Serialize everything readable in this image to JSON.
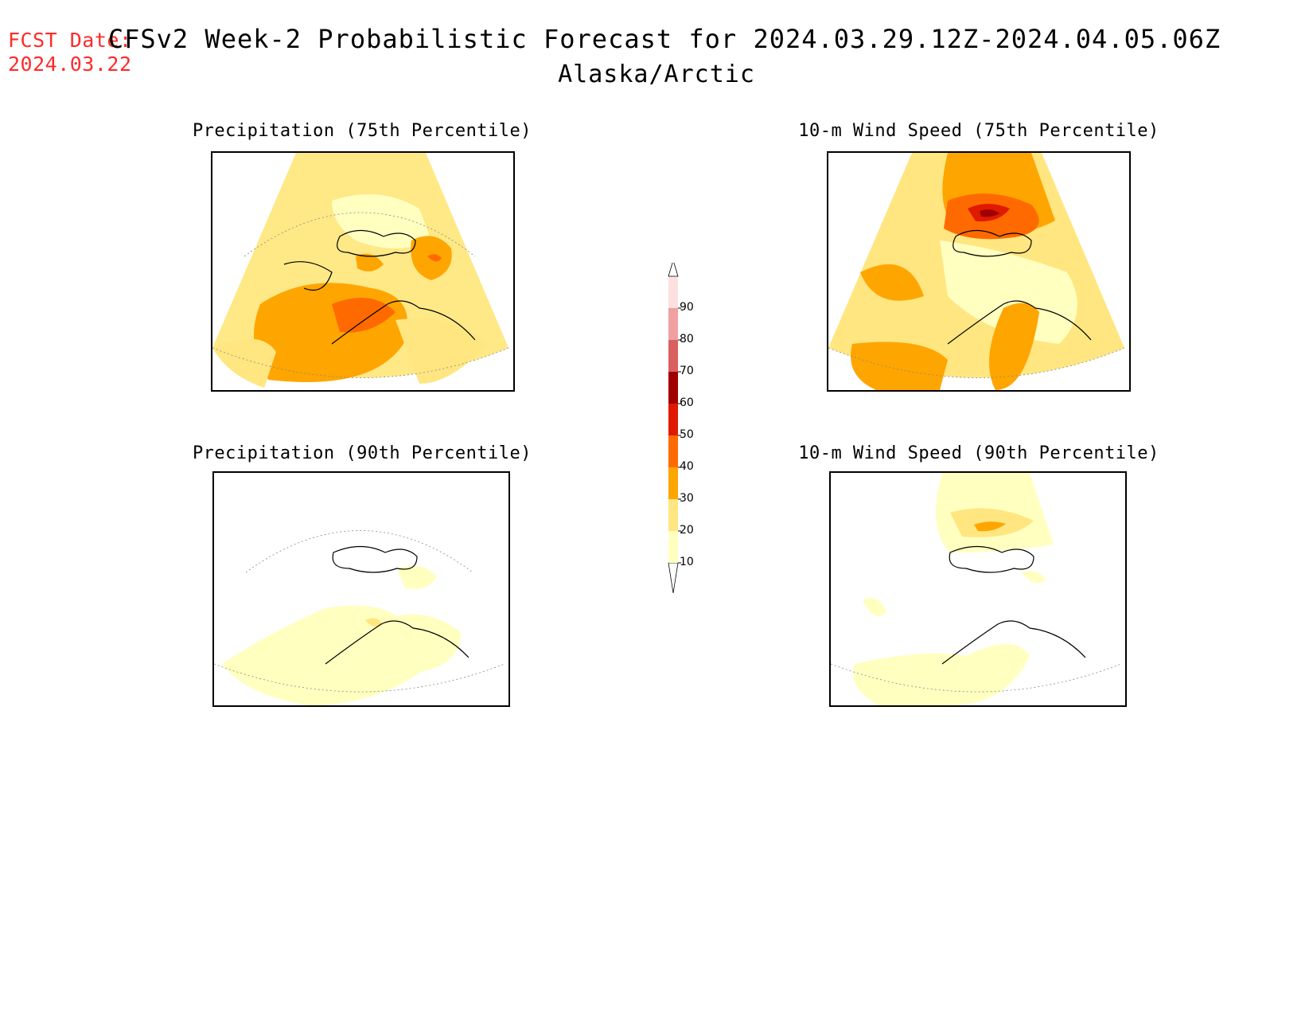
{
  "header": {
    "fcst_label": "FCST Date:",
    "fcst_date": "2024.03.22",
    "title": "CFSv2 Week-2 Probabilistic Forecast for 2024.03.29.12Z-2024.04.05.06Z",
    "subtitle": "Alaska/Arctic"
  },
  "panels": [
    {
      "title": "Precipitation (75th Percentile)"
    },
    {
      "title": "10-m Wind Speed (75th Percentile)"
    },
    {
      "title": "Precipitation (90th Percentile)"
    },
    {
      "title": "10-m Wind Speed (90th Percentile)"
    }
  ],
  "colorbar": {
    "levels": [
      "10",
      "20",
      "30",
      "40",
      "50",
      "60",
      "70",
      "80",
      "90"
    ],
    "colors": [
      "#ffffc0",
      "#ffe680",
      "#ffa500",
      "#ff6a00",
      "#e01a00",
      "#a00000",
      "#d96060",
      "#f0a0a0",
      "#fde0e0"
    ]
  },
  "colors": {
    "fcst_text": "#ff2a2a",
    "level_10_20": "#ffffc0",
    "level_20_30": "#ffe680",
    "level_30_40": "#ffa500",
    "level_40_50": "#ff6a00",
    "level_50_60": "#e01a00",
    "level_60_70": "#a00000"
  }
}
